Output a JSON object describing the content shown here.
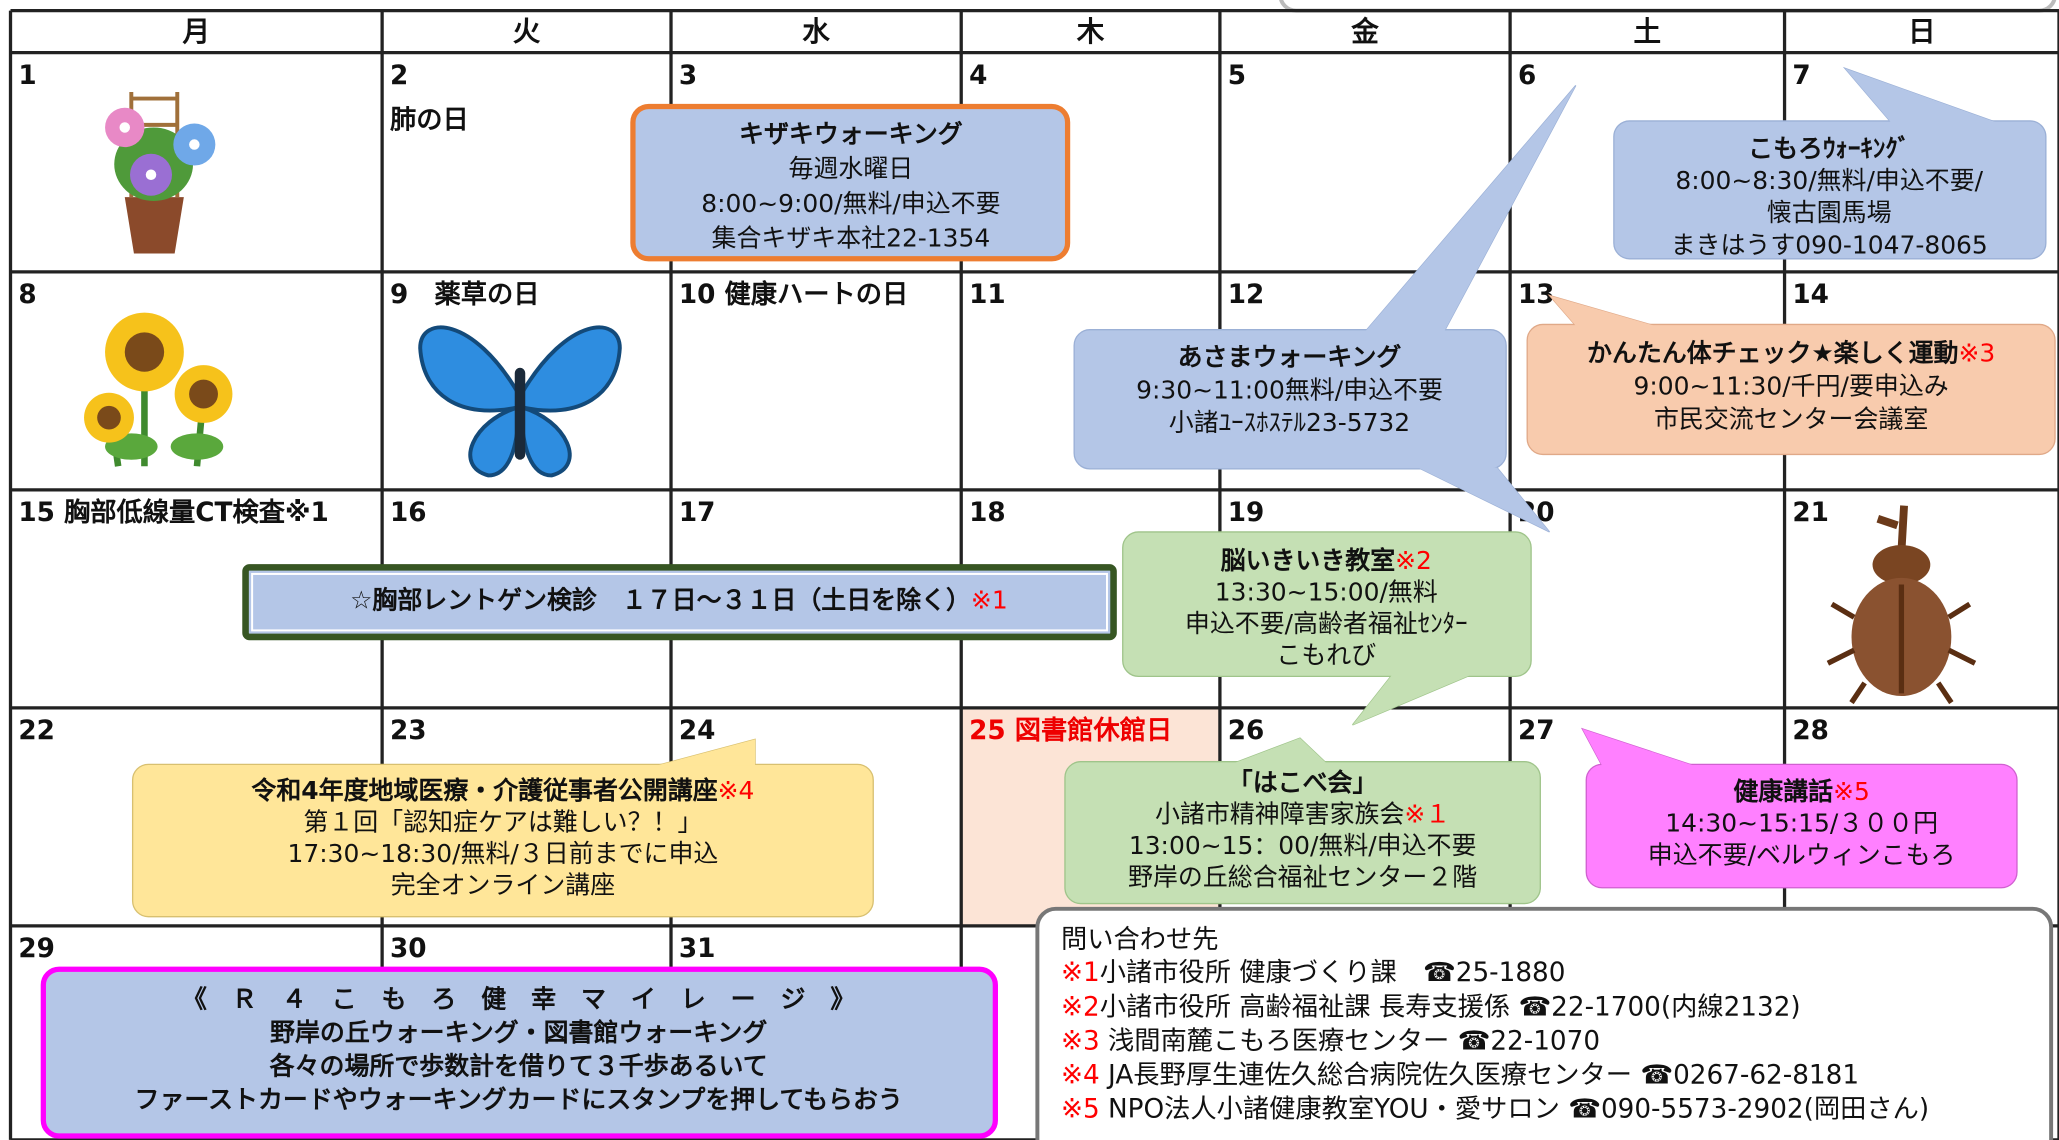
{
  "calendar": {
    "weekdays": [
      "月",
      "火",
      "水",
      "木",
      "金",
      "土",
      "日"
    ],
    "cells": [
      {
        "label": "1"
      },
      {
        "label": "2",
        "note": "肺の日"
      },
      {
        "label": "3"
      },
      {
        "label": "4"
      },
      {
        "label": "5"
      },
      {
        "label": "6"
      },
      {
        "label": "7"
      },
      {
        "label": "8"
      },
      {
        "label": "9　薬草の日"
      },
      {
        "label": "10 健康ハートの日"
      },
      {
        "label": "11"
      },
      {
        "label": "12"
      },
      {
        "label": "13"
      },
      {
        "label": "14"
      },
      {
        "label": "15 胸部低線量CT検査※1"
      },
      {
        "label": "16"
      },
      {
        "label": "17"
      },
      {
        "label": "18"
      },
      {
        "label": "19"
      },
      {
        "label": "20"
      },
      {
        "label": "21"
      },
      {
        "label": "22"
      },
      {
        "label": "23"
      },
      {
        "label": "24"
      },
      {
        "label": "25 図書館休館日"
      },
      {
        "label": "26"
      },
      {
        "label": "27"
      },
      {
        "label": "28"
      },
      {
        "label": "29"
      },
      {
        "label": "30"
      },
      {
        "label": "31"
      }
    ]
  },
  "events": [
    {
      "lines": [
        "キザキウォーキング",
        "毎週水曜日",
        "8:00~9:00/無料/申込不要",
        "集合キザキ本社22-1354"
      ]
    },
    {
      "lines": [
        "こもろｳｫｰｷﾝｸﾞ",
        "8:00~8:30/無料/申込不要/",
        "懐古園馬場",
        "まきはうす090-1047-8065"
      ]
    },
    {
      "lines": [
        "あさまウォーキング",
        "9:30~11:00無料/申込不要",
        "小諸ﾕｰｽﾎｽﾃﾙ23-5732"
      ]
    },
    {
      "lines": [
        {
          "text": "かんたん体チェック★楽しく運動",
          "note": "※3"
        },
        "9:00~11:30/千円/要申込み",
        "市民交流センター会議室"
      ]
    },
    {
      "lines": [
        {
          "text": "☆胸部レントゲン検診　１７日～３１日（土日を除く）",
          "note": "※1"
        }
      ]
    },
    {
      "lines": [
        {
          "text": "脳いきいき教室",
          "note": "※2"
        },
        "13:30~15:00/無料",
        "申込不要/高齢者福祉ｾﾝﾀｰ",
        "こもれび"
      ]
    },
    {
      "lines": [
        {
          "text": "令和4年度地域医療・介護従事者公開講座",
          "note": "※4"
        },
        "第１回「認知症ケアは難しい？！」",
        "17:30~18:30/無料/３日前までに申込",
        "完全オンライン講座"
      ]
    },
    {
      "lines": [
        "「はこべ会」",
        {
          "text": "小諸市精神障害家族会",
          "note": "※１"
        },
        "13:00~15：00/無料/申込不要",
        "野岸の丘総合福祉センター２階"
      ]
    },
    {
      "lines": [
        {
          "text": "健康講話",
          "note": "※5"
        },
        "14:30~15:15/３００円",
        "申込不要/ベルウィンこもろ"
      ]
    },
    {
      "lines": [
        "《　Ｒ　４　こ　も　ろ　健　幸　マ　イ　レ　ー　ジ　》",
        "野岸の丘ウォーキング・図書館ウォーキング",
        "各々の場所で歩数計を借りて３千歩あるいて",
        "ファーストカードやウォーキングカードにスタンプを押してもらおう"
      ]
    }
  ],
  "contacts": {
    "title": "問い合わせ先",
    "items": [
      {
        "mark": "※1",
        "text": "小諸市役所 健康づくり課　☎25-1880"
      },
      {
        "mark": "※2",
        "text": "小諸市役所 高齢福祉課 長寿支援係 ☎22-1700(内線2132)"
      },
      {
        "mark": "※3",
        "text": " 浅間南麓こもろ医療センター ☎22-1070"
      },
      {
        "mark": "※4",
        "text": " JA長野厚生連佐久総合病院佐久医療センター ☎0267-62-8181"
      },
      {
        "mark": "※5",
        "text": " NPO法人小諸健康教室YOU・愛サロン ☎090-5573-2902(岡田さん)"
      }
    ]
  }
}
